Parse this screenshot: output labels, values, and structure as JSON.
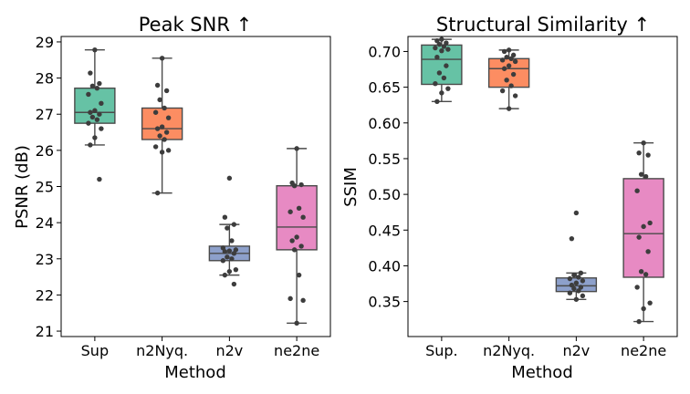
{
  "chart_data": [
    {
      "type": "box",
      "title": "Peak SNR ↑",
      "xlabel": "Method",
      "ylabel": "PSNR (dB)",
      "ylim": [
        20.85,
        29.15
      ],
      "yticks": [
        21,
        22,
        23,
        24,
        25,
        26,
        27,
        28,
        29
      ],
      "grid": false,
      "categories": [
        "Sup",
        "n2Nyq.",
        "n2v",
        "ne2ne"
      ],
      "series": [
        {
          "color": "#66c2a5",
          "box": {
            "min": 26.15,
            "q1": 26.75,
            "median": 27.05,
            "q3": 27.72,
            "max": 28.78
          },
          "points": [
            28.78,
            28.14,
            27.85,
            27.78,
            27.72,
            27.55,
            27.3,
            27.1,
            27.05,
            27.0,
            26.92,
            26.85,
            26.75,
            26.6,
            26.35,
            26.15,
            25.2
          ]
        },
        {
          "color": "#fc8d62",
          "box": {
            "min": 24.82,
            "q1": 26.3,
            "median": 26.6,
            "q3": 27.17,
            "max": 28.55
          },
          "points": [
            28.55,
            27.8,
            27.65,
            27.4,
            27.17,
            27.05,
            26.9,
            26.65,
            26.6,
            26.5,
            26.4,
            26.3,
            26.1,
            26.0,
            25.95,
            24.82
          ]
        },
        {
          "color": "#8da0cb",
          "box": {
            "min": 22.55,
            "q1": 22.95,
            "median": 23.15,
            "q3": 23.35,
            "max": 23.95
          },
          "points": [
            25.23,
            24.15,
            23.95,
            23.85,
            23.5,
            23.3,
            23.25,
            23.22,
            23.2,
            23.15,
            23.05,
            23.0,
            22.95,
            22.7,
            22.65,
            22.55,
            22.3
          ]
        },
        {
          "color": "#e78ac3",
          "box": {
            "min": 21.22,
            "q1": 23.25,
            "median": 23.88,
            "q3": 25.02,
            "max": 26.05
          },
          "points": [
            26.05,
            25.1,
            25.05,
            25.02,
            24.4,
            24.3,
            24.15,
            23.6,
            23.5,
            23.35,
            23.25,
            22.55,
            21.9,
            21.85,
            21.22
          ]
        }
      ]
    },
    {
      "type": "box",
      "title": "Structural Similarity ↑",
      "xlabel": "Method",
      "ylabel": "SSIM",
      "ylim": [
        0.301,
        0.721
      ],
      "yticks": [
        0.35,
        0.4,
        0.45,
        0.5,
        0.55,
        0.6,
        0.65,
        0.7
      ],
      "tick_labels": [
        "0.35",
        "0.40",
        "0.45",
        "0.50",
        "0.55",
        "0.60",
        "0.65",
        "0.70"
      ],
      "grid": false,
      "categories": [
        "Sup.",
        "n2Nyq.",
        "n2v",
        "ne2ne"
      ],
      "series": [
        {
          "color": "#66c2a5",
          "box": {
            "min": 0.63,
            "q1": 0.654,
            "median": 0.689,
            "q3": 0.709,
            "max": 0.717
          },
          "points": [
            0.717,
            0.715,
            0.712,
            0.71,
            0.707,
            0.705,
            0.703,
            0.701,
            0.692,
            0.68,
            0.67,
            0.663,
            0.655,
            0.648,
            0.642,
            0.63
          ]
        },
        {
          "color": "#fc8d62",
          "box": {
            "min": 0.62,
            "q1": 0.65,
            "median": 0.676,
            "q3": 0.69,
            "max": 0.702
          },
          "points": [
            0.702,
            0.7,
            0.695,
            0.692,
            0.69,
            0.688,
            0.686,
            0.68,
            0.676,
            0.668,
            0.66,
            0.652,
            0.645,
            0.638,
            0.62
          ]
        },
        {
          "color": "#8da0cb",
          "box": {
            "min": 0.353,
            "q1": 0.364,
            "median": 0.372,
            "q3": 0.383,
            "max": 0.39
          },
          "points": [
            0.474,
            0.438,
            0.39,
            0.387,
            0.384,
            0.382,
            0.379,
            0.376,
            0.373,
            0.37,
            0.368,
            0.365,
            0.362,
            0.358,
            0.353
          ]
        },
        {
          "color": "#e78ac3",
          "box": {
            "min": 0.322,
            "q1": 0.384,
            "median": 0.445,
            "q3": 0.522,
            "max": 0.572
          },
          "points": [
            0.572,
            0.558,
            0.555,
            0.528,
            0.525,
            0.505,
            0.46,
            0.455,
            0.44,
            0.42,
            0.392,
            0.388,
            0.37,
            0.348,
            0.34,
            0.322
          ]
        }
      ]
    }
  ]
}
